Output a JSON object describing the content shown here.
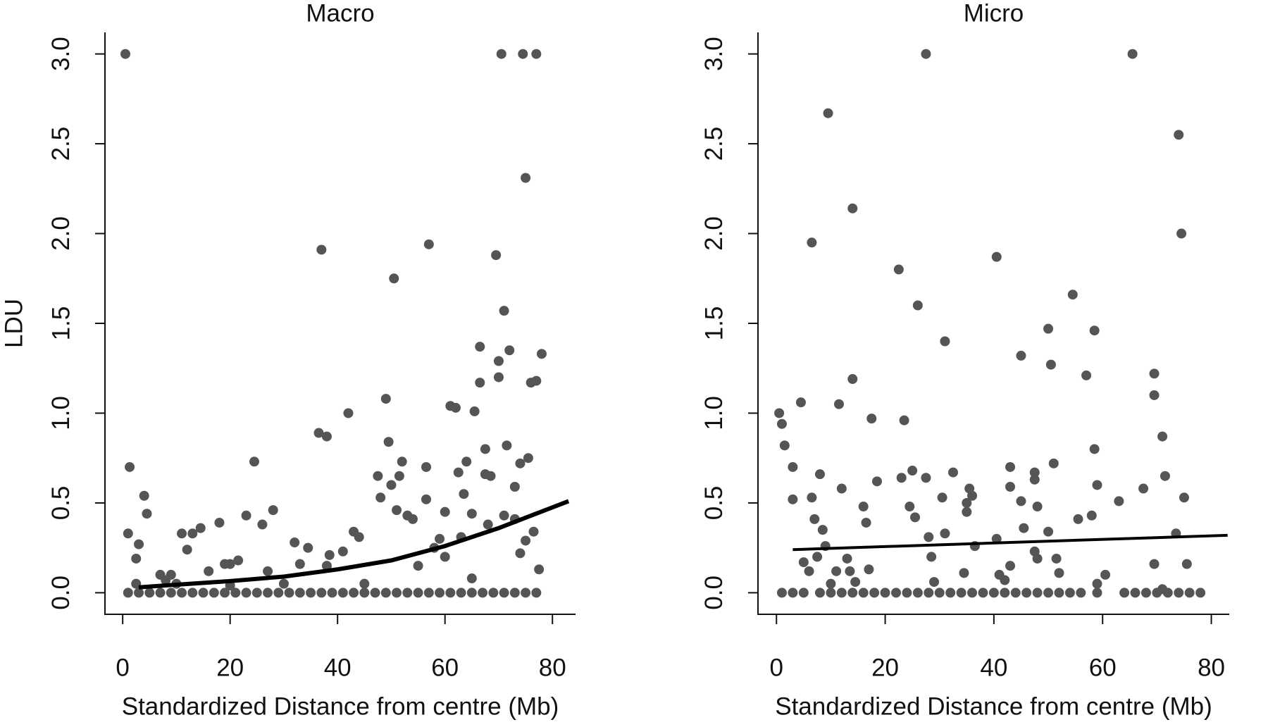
{
  "chart_data": [
    {
      "type": "scatter",
      "title": "Macro",
      "xlabel": "Standardized Distance from centre (Mb)",
      "ylabel": "LDU",
      "color": "#555555",
      "fit_color": "#000000",
      "xlim": [
        -3.3,
        84.3
      ],
      "ylim": [
        -0.12,
        3.12
      ],
      "xticks": [
        0,
        20,
        40,
        60,
        80
      ],
      "yticks": [
        {
          "value": 0,
          "label": "0.0"
        },
        {
          "value": 0.5,
          "label": "0.5"
        },
        {
          "value": 1,
          "label": "1.0"
        },
        {
          "value": 1.5,
          "label": "1.5"
        },
        {
          "value": 2,
          "label": "2.0"
        },
        {
          "value": 2.5,
          "label": "2.5"
        },
        {
          "value": 3,
          "label": "3.0"
        }
      ],
      "x": [
        0.5,
        1,
        1.3,
        2.5,
        3,
        4,
        4.5,
        2.5,
        7,
        8,
        9,
        11,
        12,
        13,
        14.5,
        16,
        18,
        19,
        20,
        21.5,
        23,
        24.5,
        26,
        27,
        28,
        32,
        33,
        34.5,
        36.5,
        37,
        38,
        38.5,
        38,
        41,
        42,
        43,
        44,
        47.5,
        48,
        49,
        49.5,
        50,
        50.5,
        51,
        51.5,
        52,
        53,
        54,
        57,
        56.5,
        56.5,
        58,
        59,
        60,
        61,
        62,
        62.5,
        63,
        63.5,
        64,
        65,
        65.5,
        66.5,
        66.5,
        67.5,
        67.5,
        68,
        68.5,
        69.5,
        70,
        70,
        70.5,
        71,
        71.5,
        71,
        72,
        73,
        73,
        74,
        74.5,
        75,
        75.5,
        75,
        76,
        76.5,
        77,
        77,
        78,
        77.5,
        74,
        60,
        55,
        45,
        65,
        30,
        20,
        10,
        1,
        3,
        5,
        7,
        9,
        11,
        13,
        15,
        17,
        19,
        21,
        23,
        25,
        27,
        29,
        31,
        33,
        35,
        37,
        39,
        41,
        43,
        45,
        47,
        49,
        51,
        53,
        55,
        57,
        59,
        61,
        63,
        65,
        67,
        69,
        71,
        73,
        75,
        77
      ],
      "values": [
        3.0,
        0.33,
        0.7,
        0.19,
        0.27,
        0.54,
        0.44,
        0.05,
        0.1,
        0.07,
        0.1,
        0.33,
        0.24,
        0.33,
        0.36,
        0.12,
        0.39,
        0.16,
        0.16,
        0.18,
        0.43,
        0.73,
        0.38,
        0.12,
        0.46,
        0.28,
        0.16,
        0.25,
        0.89,
        1.91,
        0.87,
        0.21,
        0.15,
        0.23,
        1.0,
        0.34,
        0.31,
        0.65,
        0.53,
        1.08,
        0.84,
        0.6,
        1.75,
        0.46,
        0.65,
        0.73,
        0.43,
        0.41,
        1.94,
        0.7,
        0.52,
        0.25,
        0.3,
        0.45,
        1.04,
        1.03,
        0.67,
        0.31,
        0.55,
        0.73,
        0.44,
        1.01,
        1.37,
        1.17,
        0.8,
        0.66,
        0.38,
        0.65,
        1.88,
        1.29,
        1.2,
        3.0,
        1.57,
        0.82,
        0.43,
        1.35,
        0.59,
        0.41,
        0.72,
        3.0,
        2.31,
        0.75,
        0.29,
        1.17,
        0.34,
        3.0,
        1.18,
        1.33,
        0.13,
        0.22,
        0.2,
        0.15,
        0.05,
        0.08,
        0.05,
        0.04,
        0.05,
        0,
        0,
        0,
        0,
        0,
        0,
        0,
        0,
        0,
        0,
        0,
        0,
        0,
        0,
        0,
        0,
        0,
        0,
        0,
        0,
        0,
        0,
        0,
        0,
        0,
        0,
        0,
        0,
        0,
        0,
        0,
        0,
        0,
        0,
        0,
        0,
        0,
        0,
        0
      ],
      "fit_x": [
        3,
        10,
        20,
        30,
        40,
        50,
        60,
        70,
        83
      ],
      "fit_values": [
        0.03,
        0.045,
        0.065,
        0.09,
        0.13,
        0.18,
        0.26,
        0.36,
        0.51
      ]
    },
    {
      "type": "scatter",
      "title": "Micro",
      "xlabel": "Standardized Distance from centre (Mb)",
      "color": "#555555",
      "fit_color": "#000000",
      "xlim": [
        -3.4,
        83.3
      ],
      "ylim": [
        -0.12,
        3.12
      ],
      "xticks": [
        0,
        20,
        40,
        60,
        80
      ],
      "yticks": [
        {
          "value": 0,
          "label": "0.0"
        },
        {
          "value": 0.5,
          "label": "0.5"
        },
        {
          "value": 1,
          "label": "1.0"
        },
        {
          "value": 1.5,
          "label": "1.5"
        },
        {
          "value": 2,
          "label": "2.0"
        },
        {
          "value": 2.5,
          "label": "2.5"
        },
        {
          "value": 3,
          "label": "3.0"
        }
      ],
      "x": [
        0.5,
        1,
        1.5,
        3,
        3,
        4.5,
        5,
        6,
        6.5,
        6.5,
        7,
        7.5,
        8,
        8.5,
        9,
        9.5,
        10,
        11,
        11.5,
        12,
        13,
        13.5,
        14,
        14,
        14.5,
        16,
        16.5,
        17,
        17.5,
        18.5,
        22.5,
        23,
        23.5,
        24.5,
        25,
        25.5,
        26,
        27.5,
        27.5,
        28,
        28.5,
        29,
        30.5,
        31,
        31,
        32.5,
        34.5,
        35,
        35,
        35.5,
        36,
        36.5,
        40.5,
        40.5,
        41,
        42,
        43,
        43,
        43,
        45,
        45,
        45.5,
        47.5,
        47.5,
        47.5,
        48,
        48,
        50,
        50,
        50.5,
        51,
        51.5,
        52,
        54.5,
        55.5,
        57,
        58,
        58.5,
        58.5,
        59,
        59,
        60.5,
        63,
        65.5,
        67.5,
        69.5,
        69.5,
        69.5,
        71,
        71.5,
        73.5,
        74,
        74.5,
        75,
        75.5,
        71,
        1,
        3,
        5,
        8,
        10,
        12,
        14,
        16,
        18,
        20,
        22,
        24,
        26,
        28,
        30,
        32,
        34,
        36,
        38,
        40,
        42,
        44,
        46,
        48,
        50,
        52,
        54,
        56,
        59,
        64,
        66,
        68,
        70,
        72,
        74,
        76,
        78
      ],
      "values": [
        1.0,
        0.94,
        0.82,
        0.7,
        0.52,
        1.06,
        0.17,
        0.12,
        1.95,
        0.53,
        0.41,
        0.2,
        0.66,
        0.35,
        0.26,
        2.67,
        0.05,
        0.12,
        1.05,
        0.58,
        0.19,
        0.12,
        1.19,
        2.14,
        0.06,
        0.48,
        0.39,
        0.13,
        0.97,
        0.62,
        1.8,
        0.64,
        0.96,
        0.48,
        0.68,
        0.42,
        1.6,
        3.0,
        0.64,
        0.31,
        0.2,
        0.06,
        0.53,
        1.4,
        0.33,
        0.67,
        0.11,
        0.45,
        0.5,
        0.58,
        0.54,
        0.26,
        1.87,
        0.3,
        0.1,
        0.07,
        0.7,
        0.59,
        0.15,
        1.32,
        0.51,
        0.36,
        0.67,
        0.63,
        0.23,
        0.19,
        0.48,
        1.47,
        0.34,
        1.27,
        0.72,
        0.19,
        0.11,
        1.66,
        0.41,
        1.21,
        0.43,
        1.46,
        0.8,
        0.6,
        0.05,
        0.1,
        0.51,
        3.0,
        0.58,
        1.22,
        1.1,
        0.16,
        0.87,
        0.65,
        0.33,
        2.55,
        2.0,
        0.53,
        0.16,
        0.02,
        0,
        0,
        0,
        0,
        0,
        0,
        0,
        0,
        0,
        0,
        0,
        0,
        0,
        0,
        0,
        0,
        0,
        0,
        0,
        0,
        0,
        0,
        0,
        0,
        0,
        0,
        0,
        0,
        0,
        0,
        0,
        0,
        0,
        0,
        0,
        0,
        0
      ],
      "fit_x": [
        3,
        83
      ],
      "fit_values": [
        0.24,
        0.32
      ]
    }
  ]
}
